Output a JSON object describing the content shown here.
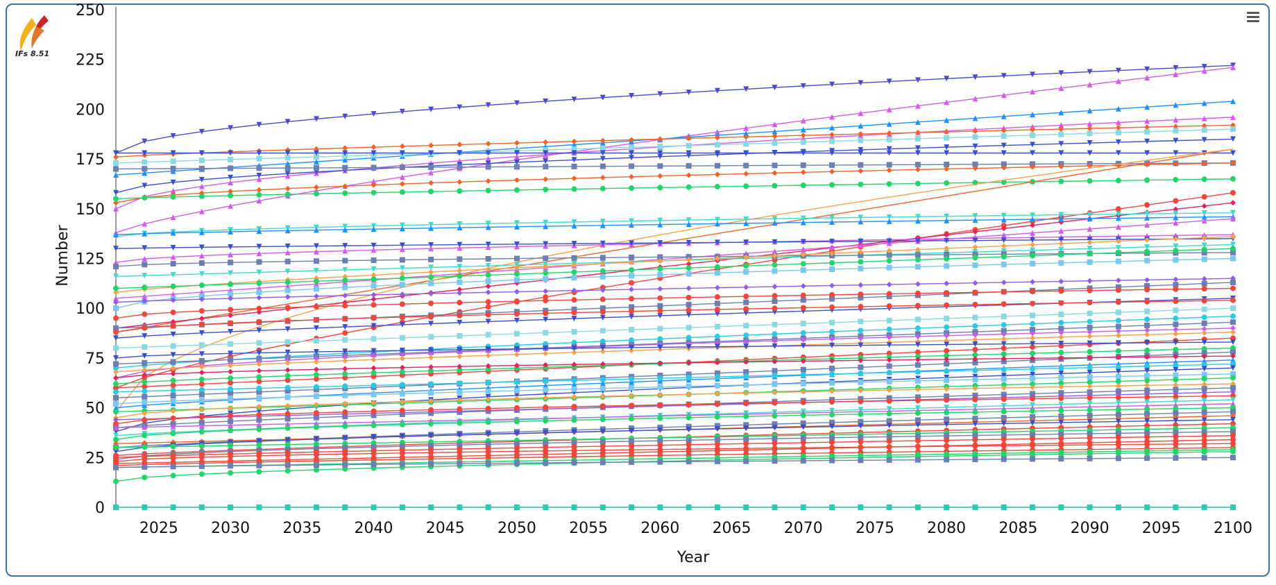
{
  "logo": {
    "label": "IFs 8.51",
    "colors": [
      "#f2b01e",
      "#c8282d"
    ]
  },
  "menu": {
    "icon": "hamburger-menu-icon"
  },
  "chart_data": {
    "type": "line",
    "title": "",
    "xlabel": "Year",
    "ylabel": "Number",
    "xlim": [
      2022,
      2100
    ],
    "ylim": [
      0,
      250
    ],
    "x_ticks": [
      "2025",
      "2030",
      "2035",
      "2040",
      "2045",
      "2050",
      "2055",
      "2060",
      "2065",
      "2070",
      "2075",
      "2080",
      "2085",
      "2090",
      "2095",
      "2100"
    ],
    "y_ticks": [
      "0",
      "25",
      "50",
      "75",
      "100",
      "125",
      "150",
      "175",
      "200",
      "225",
      "250"
    ],
    "grid": false,
    "legend": "none",
    "palette": [
      "#5b8cd6",
      "#f0473c",
      "#22d46a",
      "#8e5ce6",
      "#2ec9e0",
      "#f5a04a",
      "#6c7fb0",
      "#e44be0",
      "#3b50c8",
      "#f2622a",
      "#45d8c8",
      "#1e90ff",
      "#e0245e",
      "#7ac7f0",
      "#c25ee8",
      "#fa8072"
    ],
    "series": [
      {
        "start": 178,
        "end": 222,
        "color": "#4b4bc8",
        "marker": "triangle-down"
      },
      {
        "start": 138,
        "end": 221,
        "color": "#d45be8",
        "marker": "triangle-up"
      },
      {
        "start": 167,
        "end": 204,
        "color": "#1e90ff",
        "marker": "triangle-up"
      },
      {
        "start": 150,
        "end": 196,
        "color": "#d45be8",
        "marker": "triangle-up"
      },
      {
        "start": 176,
        "end": 192,
        "color": "#f2622a",
        "marker": "diamond"
      },
      {
        "start": 173,
        "end": 190,
        "color": "#8ad8e0",
        "marker": "square"
      },
      {
        "start": 158,
        "end": 185,
        "color": "#3b50c8",
        "marker": "triangle-down"
      },
      {
        "start": 178,
        "end": 178,
        "color": "#3b50c8",
        "marker": "triangle-down"
      },
      {
        "start": 170,
        "end": 173,
        "color": "#6c7fb0",
        "marker": "square"
      },
      {
        "start": 153,
        "end": 173,
        "color": "#f2622a",
        "marker": "diamond"
      },
      {
        "start": 155,
        "end": 165,
        "color": "#22d46a",
        "marker": "circle"
      },
      {
        "start": 88,
        "end": 180,
        "color": "#f2622a",
        "marker": "none"
      },
      {
        "start": 48,
        "end": 180,
        "color": "#f5a04a",
        "marker": "none"
      },
      {
        "start": 60,
        "end": 158,
        "color": "#f0473c",
        "marker": "circle"
      },
      {
        "start": 90,
        "end": 153,
        "color": "#e0245e",
        "marker": "diamond"
      },
      {
        "start": 136,
        "end": 148,
        "color": "#45d8c8",
        "marker": "triangle-down"
      },
      {
        "start": 137,
        "end": 146,
        "color": "#1e90ff",
        "marker": "triangle-up"
      },
      {
        "start": 105,
        "end": 145,
        "color": "#d45be8",
        "marker": "triangle-up"
      },
      {
        "start": 123,
        "end": 137,
        "color": "#d45be8",
        "marker": "triangle-up"
      },
      {
        "start": 130,
        "end": 135,
        "color": "#3b50c8",
        "marker": "triangle-down"
      },
      {
        "start": 116,
        "end": 132,
        "color": "#45d8c8",
        "marker": "triangle-down"
      },
      {
        "start": 121,
        "end": 128,
        "color": "#6c7fb0",
        "marker": "square"
      },
      {
        "start": 108,
        "end": 136,
        "color": "#f5a04a",
        "marker": "diamond"
      },
      {
        "start": 110,
        "end": 130,
        "color": "#22d46a",
        "marker": "circle"
      },
      {
        "start": 100,
        "end": 125,
        "color": "#7ac7f0",
        "marker": "square"
      },
      {
        "start": 103,
        "end": 115,
        "color": "#8e5ce6",
        "marker": "diamond"
      },
      {
        "start": 90,
        "end": 113,
        "color": "#6c7fb0",
        "marker": "square"
      },
      {
        "start": 95,
        "end": 110,
        "color": "#f0473c",
        "marker": "circle"
      },
      {
        "start": 85,
        "end": 105,
        "color": "#3b50c8",
        "marker": "triangle-down"
      },
      {
        "start": 80,
        "end": 100,
        "color": "#8ad8e0",
        "marker": "square"
      },
      {
        "start": 88,
        "end": 104,
        "color": "#f0473c",
        "marker": "circle"
      },
      {
        "start": 70,
        "end": 96,
        "color": "#2ec9e0",
        "marker": "circle"
      },
      {
        "start": 72,
        "end": 93,
        "color": "#6c7fb0",
        "marker": "square"
      },
      {
        "start": 65,
        "end": 90,
        "color": "#c25ee8",
        "marker": "diamond"
      },
      {
        "start": 68,
        "end": 88,
        "color": "#f5a04a",
        "marker": "diamond"
      },
      {
        "start": 60,
        "end": 85,
        "color": "#f0473c",
        "marker": "circle"
      },
      {
        "start": 75,
        "end": 83,
        "color": "#3b50c8",
        "marker": "triangle-down"
      },
      {
        "start": 62,
        "end": 80,
        "color": "#22d46a",
        "marker": "circle"
      },
      {
        "start": 55,
        "end": 78,
        "color": "#6c7fb0",
        "marker": "square"
      },
      {
        "start": 65,
        "end": 76,
        "color": "#e0245e",
        "marker": "diamond"
      },
      {
        "start": 50,
        "end": 74,
        "color": "#1e90ff",
        "marker": "triangle-up"
      },
      {
        "start": 58,
        "end": 72,
        "color": "#2ec9e0",
        "marker": "circle"
      },
      {
        "start": 38,
        "end": 70,
        "color": "#3b50c8",
        "marker": "triangle-down"
      },
      {
        "start": 52,
        "end": 67,
        "color": "#7ac7f0",
        "marker": "square"
      },
      {
        "start": 48,
        "end": 65,
        "color": "#22d46a",
        "marker": "circle"
      },
      {
        "start": 45,
        "end": 62,
        "color": "#f5a04a",
        "marker": "diamond"
      },
      {
        "start": 40,
        "end": 60,
        "color": "#6c7fb0",
        "marker": "square"
      },
      {
        "start": 44,
        "end": 58,
        "color": "#8e5ce6",
        "marker": "diamond"
      },
      {
        "start": 42,
        "end": 56,
        "color": "#f0473c",
        "marker": "circle"
      },
      {
        "start": 36,
        "end": 54,
        "color": "#45d8c8",
        "marker": "triangle-down"
      },
      {
        "start": 40,
        "end": 52,
        "color": "#c25ee8",
        "marker": "triangle-up"
      },
      {
        "start": 34,
        "end": 50,
        "color": "#22d46a",
        "marker": "circle"
      },
      {
        "start": 30,
        "end": 48,
        "color": "#6c7fb0",
        "marker": "square"
      },
      {
        "start": 32,
        "end": 46,
        "color": "#f2622a",
        "marker": "diamond"
      },
      {
        "start": 28,
        "end": 44,
        "color": "#3b50c8",
        "marker": "triangle-down"
      },
      {
        "start": 26,
        "end": 42,
        "color": "#f0473c",
        "marker": "circle"
      },
      {
        "start": 30,
        "end": 40,
        "color": "#22d46a",
        "marker": "circle"
      },
      {
        "start": 24,
        "end": 38,
        "color": "#6c7fb0",
        "marker": "square"
      },
      {
        "start": 25,
        "end": 36,
        "color": "#f0473c",
        "marker": "circle"
      },
      {
        "start": 22,
        "end": 34,
        "color": "#f0473c",
        "marker": "circle"
      },
      {
        "start": 23,
        "end": 32,
        "color": "#f0473c",
        "marker": "circle"
      },
      {
        "start": 21,
        "end": 30,
        "color": "#f0473c",
        "marker": "circle"
      },
      {
        "start": 20,
        "end": 29,
        "color": "#22d46a",
        "marker": "circle"
      },
      {
        "start": 13,
        "end": 28,
        "color": "#22d46a",
        "marker": "circle"
      },
      {
        "start": 20,
        "end": 25,
        "color": "#6c7fb0",
        "marker": "square"
      },
      {
        "start": 0,
        "end": 0,
        "color": "#2ec9b0",
        "marker": "square"
      }
    ]
  }
}
